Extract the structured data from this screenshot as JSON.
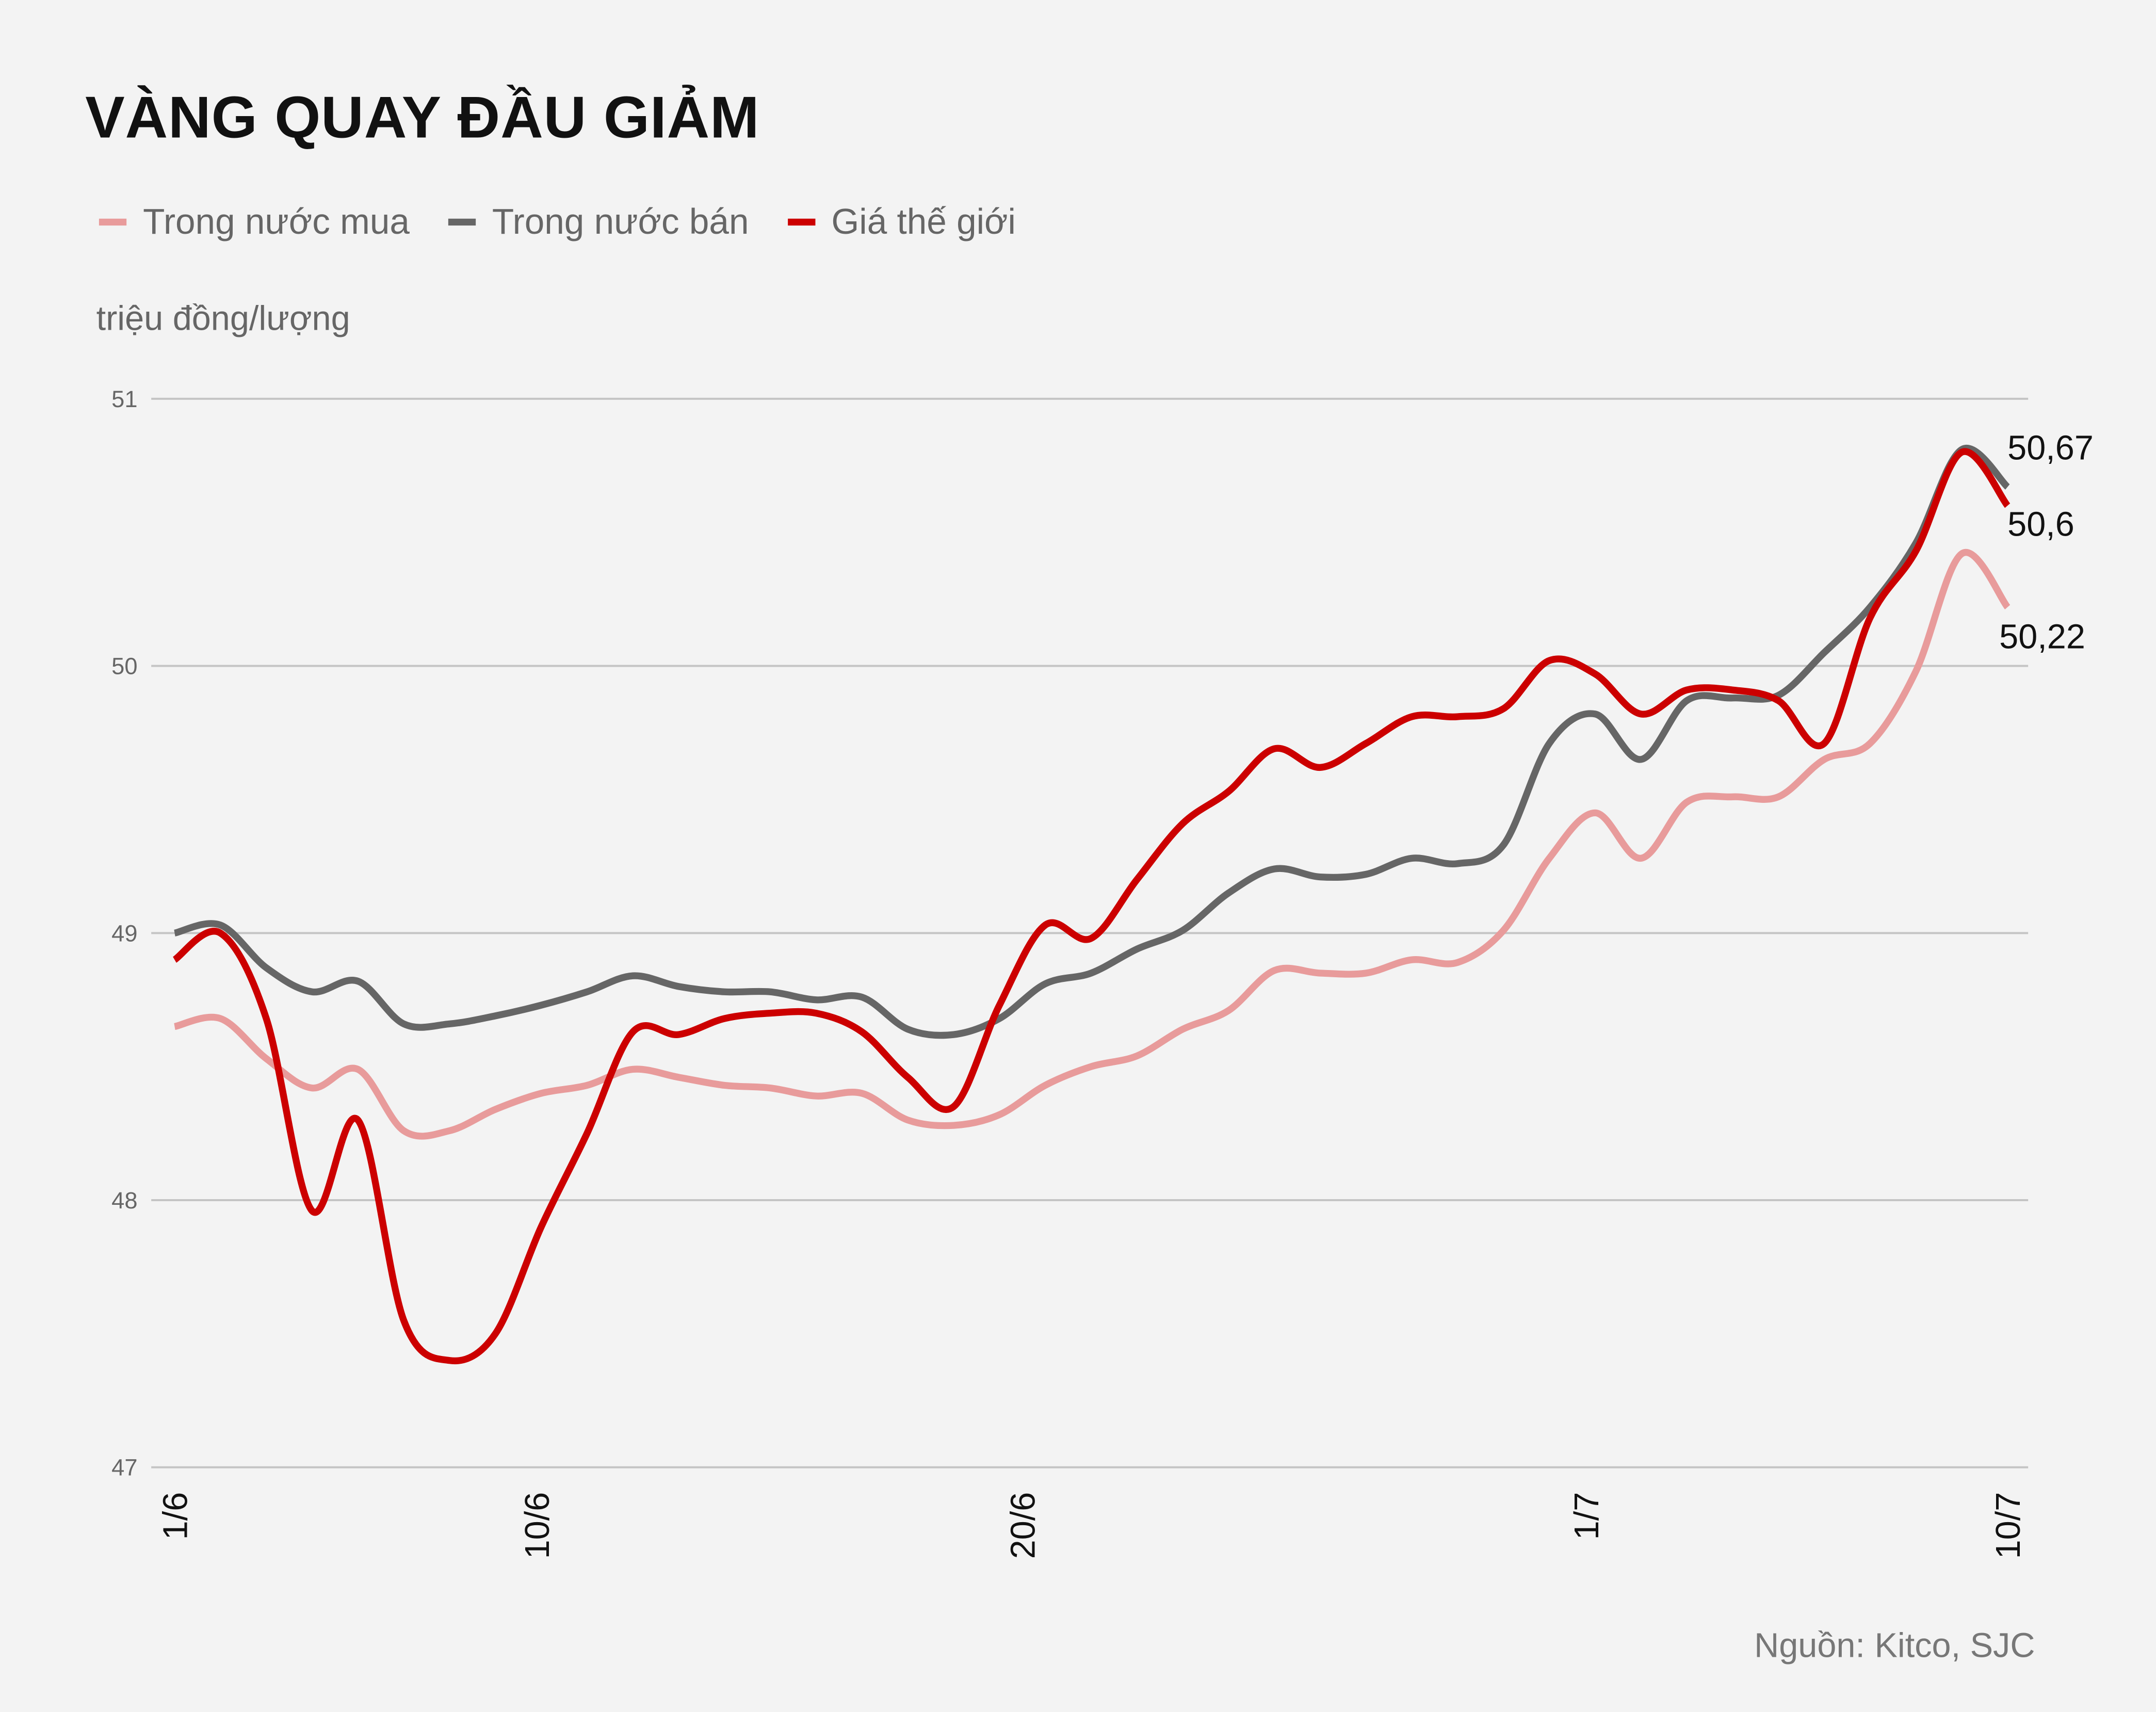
{
  "title": "VÀNG QUAY ĐẦU GIẢM",
  "unit_label": "triệu đồng/lượng",
  "source": "Nguồn: Kitco, SJC",
  "chart_data": {
    "type": "line",
    "title": "VÀNG QUAY ĐẦU GIẢM",
    "ylabel": "triệu đồng/lượng",
    "ylim": [
      47,
      51
    ],
    "yticks": [
      "47",
      "48",
      "49",
      "50",
      "51"
    ],
    "grid": true,
    "legend_placement": "top-left",
    "x_count": 41,
    "xticks": [
      {
        "label": "1/6",
        "index": 0
      },
      {
        "label": "10/6",
        "index": 7.9
      },
      {
        "label": "20/6",
        "index": 18.5
      },
      {
        "label": "1/7",
        "index": 30.8
      },
      {
        "label": "10/7",
        "index": 40
      }
    ],
    "series": [
      {
        "name": "Trong nước mua",
        "color": "#e89b9b",
        "end_label": "50,22",
        "values": [
          48.65,
          48.68,
          48.53,
          48.42,
          48.49,
          48.26,
          48.26,
          48.34,
          48.4,
          48.43,
          48.49,
          48.46,
          48.43,
          48.42,
          48.39,
          48.4,
          48.3,
          48.28,
          48.32,
          48.43,
          48.5,
          48.54,
          48.64,
          48.71,
          48.86,
          48.85,
          48.85,
          48.9,
          48.89,
          49.01,
          49.28,
          49.45,
          49.28,
          49.49,
          49.51,
          49.51,
          49.65,
          49.71,
          49.98,
          50.42,
          50.22
        ]
      },
      {
        "name": "Trong nước bán",
        "color": "#666666",
        "end_label": "50,67",
        "values": [
          49.0,
          49.03,
          48.87,
          48.78,
          48.82,
          48.66,
          48.66,
          48.69,
          48.73,
          48.78,
          48.84,
          48.8,
          48.78,
          48.78,
          48.75,
          48.76,
          48.64,
          48.62,
          48.68,
          48.81,
          48.85,
          48.94,
          49.01,
          49.15,
          49.24,
          49.21,
          49.22,
          49.28,
          49.26,
          49.33,
          49.71,
          49.82,
          49.65,
          49.87,
          49.88,
          49.89,
          50.05,
          50.22,
          50.46,
          50.81,
          50.67
        ]
      },
      {
        "name": "Giá thế giới",
        "color": "#cc0000",
        "end_label": "50,6",
        "values": [
          48.9,
          49.0,
          48.68,
          47.96,
          48.3,
          47.55,
          47.4,
          47.5,
          47.9,
          48.25,
          48.63,
          48.62,
          48.68,
          48.7,
          48.7,
          48.63,
          48.46,
          48.35,
          48.73,
          49.03,
          48.98,
          49.2,
          49.41,
          49.53,
          49.69,
          49.62,
          49.71,
          49.81,
          49.81,
          49.84,
          50.02,
          49.97,
          49.82,
          49.91,
          49.91,
          49.87,
          49.71,
          50.18,
          50.43,
          50.8,
          50.6
        ]
      }
    ]
  }
}
